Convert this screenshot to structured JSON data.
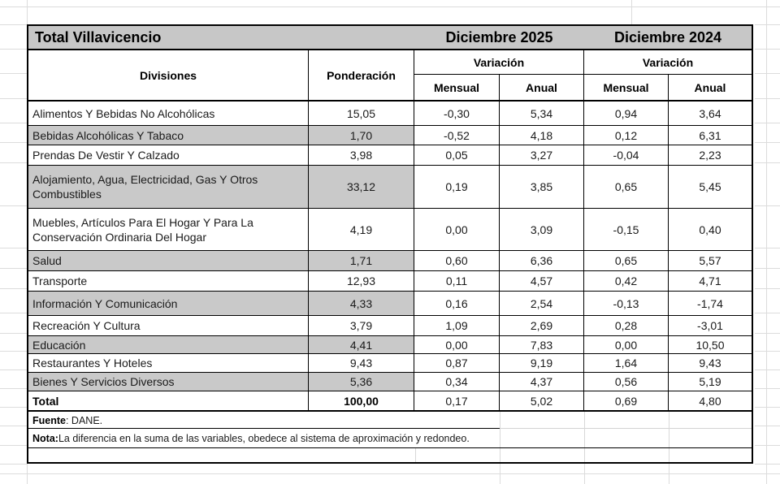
{
  "title": "Total Villavicencio",
  "header": {
    "col_divisiones": "Divisiones",
    "col_ponderacion": "Ponderación",
    "period_2025": "Diciembre 2025",
    "period_2024": "Diciembre 2024",
    "variacion": "Variación",
    "mensual": "Mensual",
    "anual": "Anual"
  },
  "rows": [
    {
      "name": "Alimentos Y Bebidas No Alcohólicas",
      "ponderacion": "15,05",
      "mensual_2025": "-0,30",
      "anual_2025": "5,34",
      "mensual_2024": "0,94",
      "anual_2024": "3,64",
      "shaded": false
    },
    {
      "name": "Bebidas Alcohólicas Y Tabaco",
      "ponderacion": "1,70",
      "mensual_2025": "-0,52",
      "anual_2025": "4,18",
      "mensual_2024": "0,12",
      "anual_2024": "6,31",
      "shaded": true
    },
    {
      "name": "Prendas De Vestir Y Calzado",
      "ponderacion": "3,98",
      "mensual_2025": "0,05",
      "anual_2025": "3,27",
      "mensual_2024": "-0,04",
      "anual_2024": "2,23",
      "shaded": false
    },
    {
      "name": "Alojamiento, Agua, Electricidad, Gas Y Otros Combustibles",
      "ponderacion": "33,12",
      "mensual_2025": "0,19",
      "anual_2025": "3,85",
      "mensual_2024": "0,65",
      "anual_2024": "5,45",
      "shaded": true
    },
    {
      "name": "Muebles, Artículos Para El Hogar Y Para La Conservación Ordinaria Del Hogar",
      "ponderacion": "4,19",
      "mensual_2025": "0,00",
      "anual_2025": "3,09",
      "mensual_2024": "-0,15",
      "anual_2024": "0,40",
      "shaded": false
    },
    {
      "name": "Salud",
      "ponderacion": "1,71",
      "mensual_2025": "0,60",
      "anual_2025": "6,36",
      "mensual_2024": "0,65",
      "anual_2024": "5,57",
      "shaded": true
    },
    {
      "name": "Transporte",
      "ponderacion": "12,93",
      "mensual_2025": "0,11",
      "anual_2025": "4,57",
      "mensual_2024": "0,42",
      "anual_2024": "4,71",
      "shaded": false
    },
    {
      "name": "Información Y Comunicación",
      "ponderacion": "4,33",
      "mensual_2025": "0,16",
      "anual_2025": "2,54",
      "mensual_2024": "-0,13",
      "anual_2024": "-1,74",
      "shaded": true
    },
    {
      "name": "Recreación Y Cultura",
      "ponderacion": "3,79",
      "mensual_2025": "1,09",
      "anual_2025": "2,69",
      "mensual_2024": "0,28",
      "anual_2024": "-3,01",
      "shaded": false
    },
    {
      "name": "Educación",
      "ponderacion": "4,41",
      "mensual_2025": "0,00",
      "anual_2025": "7,83",
      "mensual_2024": "0,00",
      "anual_2024": "10,50",
      "shaded": true
    },
    {
      "name": "Restaurantes Y Hoteles",
      "ponderacion": "9,43",
      "mensual_2025": "0,87",
      "anual_2025": "9,19",
      "mensual_2024": "1,64",
      "anual_2024": "9,43",
      "shaded": false
    },
    {
      "name": "Bienes Y Servicios Diversos",
      "ponderacion": "5,36",
      "mensual_2025": "0,34",
      "anual_2025": "4,37",
      "mensual_2024": "0,56",
      "anual_2024": "5,19",
      "shaded": true
    }
  ],
  "total_row": {
    "name": "Total",
    "ponderacion": "100,00",
    "mensual_2025": "0,17",
    "anual_2025": "5,02",
    "mensual_2024": "0,69",
    "anual_2024": "4,80"
  },
  "footer": {
    "fuente_label": "Fuente",
    "fuente_text": ": DANE.",
    "nota_label": "Nota:",
    "nota_text": " La diferencia en la suma de las variables, obedece al sistema de aproximación y redondeo."
  },
  "colors": {
    "header_fill": "#c7c7c7",
    "shaded_row_fill": "#c9c9c9",
    "table_border": "#000000",
    "sheet_gridline": "#dcdcdc"
  }
}
